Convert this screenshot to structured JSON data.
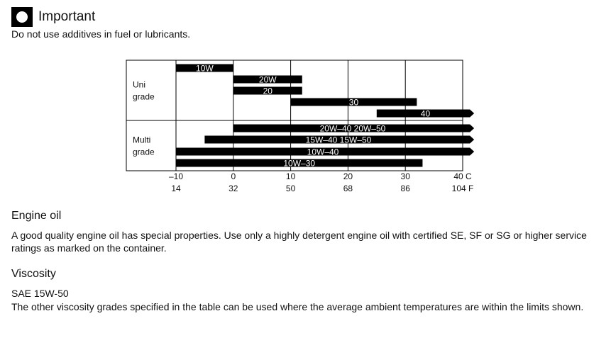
{
  "important": {
    "title": "Important",
    "text": "Do not use additives in fuel or lubricants.",
    "icon": "important-circle-icon"
  },
  "chart_data": {
    "type": "bar",
    "row_groups": [
      {
        "label_lines": [
          "Uni",
          "grade"
        ]
      },
      {
        "label_lines": [
          "Multi",
          "grade"
        ]
      }
    ],
    "x_unit_c": "C",
    "x_unit_f": "F",
    "xlim": [
      -10,
      40
    ],
    "ticks_c": [
      "–10",
      "0",
      "10",
      "20",
      "30",
      "40"
    ],
    "tick_values": [
      -10,
      0,
      10,
      20,
      30,
      40
    ],
    "ticks_f": [
      "14",
      "32",
      "50",
      "68",
      "86",
      "104"
    ],
    "series": [
      {
        "name": "10W",
        "group": 0,
        "start": -10,
        "end": 0,
        "arrow": false
      },
      {
        "name": "20W",
        "group": 0,
        "start": 0,
        "end": 12,
        "arrow": false
      },
      {
        "name": "20",
        "group": 0,
        "start": 0,
        "end": 12,
        "arrow": false
      },
      {
        "name": "30",
        "group": 0,
        "start": 10,
        "end": 32,
        "arrow": false
      },
      {
        "name": "40",
        "group": 0,
        "start": 25,
        "end": 42,
        "arrow": true
      },
      {
        "name": "20W–40   20W–50",
        "group": 1,
        "start": 0,
        "end": 42,
        "arrow": true
      },
      {
        "name": "15W–40   15W–50",
        "group": 1,
        "start": -5,
        "end": 42,
        "arrow": true
      },
      {
        "name": "10W–40",
        "group": 1,
        "start": -10,
        "end": 42,
        "arrow": true
      },
      {
        "name": "10W–30",
        "group": 1,
        "start": -10,
        "end": 33,
        "arrow": false
      }
    ]
  },
  "engine_oil": {
    "heading": "Engine oil",
    "text": "A good quality engine oil has special properties. Use only a highly detergent engine oil with certified SE, SF or SG or higher service ratings as marked on the container."
  },
  "viscosity": {
    "heading": "Viscosity",
    "grade": "SAE 15W-50",
    "text": "The other viscosity grades specified in the table can be used where the average ambient temperatures are within the limits shown."
  }
}
